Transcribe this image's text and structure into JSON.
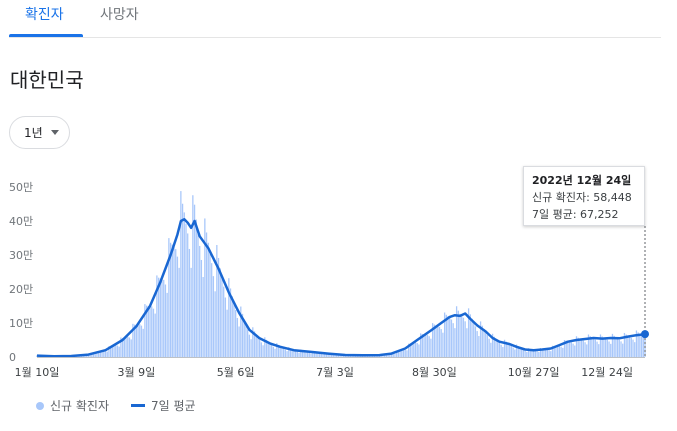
{
  "tabs": [
    {
      "label": "확진자",
      "active": true
    },
    {
      "label": "사망자",
      "active": false
    }
  ],
  "region_title": "대한민국",
  "period_selector": {
    "value": "1년"
  },
  "legend": {
    "new_cases": "신규 확진자",
    "avg": "7일 평균"
  },
  "tooltip": {
    "date": "2022년 12월 24일",
    "new_cases_line": "신규 확진자: 58,448",
    "avg_line": "7일 평균: 67,252"
  },
  "colors": {
    "bar": "#a8c7fa",
    "line": "#1967d2",
    "accent": "#1a73e8"
  },
  "chart_data": {
    "type": "bar",
    "series": [
      {
        "name": "신규 확진자",
        "kind": "bar"
      },
      {
        "name": "7일 평균",
        "kind": "line"
      }
    ],
    "x_ticks": [
      "1월 10일",
      "3월 9일",
      "5월 6일",
      "7월 3일",
      "8월 30일",
      "10월 27일",
      "12월 24일"
    ],
    "y_ticks": [
      "0",
      "10만",
      "20만",
      "30만",
      "40만",
      "50만"
    ],
    "ylim": [
      0,
      500000
    ],
    "x_range_days": [
      0,
      355
    ],
    "avg_points": [
      [
        0,
        4000
      ],
      [
        10,
        2000
      ],
      [
        20,
        3000
      ],
      [
        30,
        7000
      ],
      [
        40,
        20000
      ],
      [
        50,
        50000
      ],
      [
        58,
        90000
      ],
      [
        66,
        150000
      ],
      [
        72,
        220000
      ],
      [
        78,
        300000
      ],
      [
        82,
        360000
      ],
      [
        84,
        400000
      ],
      [
        86,
        405000
      ],
      [
        88,
        395000
      ],
      [
        90,
        380000
      ],
      [
        92,
        400000
      ],
      [
        95,
        355000
      ],
      [
        100,
        320000
      ],
      [
        106,
        260000
      ],
      [
        112,
        190000
      ],
      [
        118,
        130000
      ],
      [
        124,
        80000
      ],
      [
        130,
        55000
      ],
      [
        136,
        40000
      ],
      [
        142,
        30000
      ],
      [
        150,
        20000
      ],
      [
        160,
        15000
      ],
      [
        170,
        10000
      ],
      [
        180,
        6000
      ],
      [
        190,
        5000
      ],
      [
        200,
        5500
      ],
      [
        207,
        10000
      ],
      [
        215,
        25000
      ],
      [
        222,
        50000
      ],
      [
        230,
        78000
      ],
      [
        236,
        100000
      ],
      [
        241,
        118000
      ],
      [
        244,
        123000
      ],
      [
        247,
        121000
      ],
      [
        250,
        128000
      ],
      [
        253,
        112000
      ],
      [
        257,
        93000
      ],
      [
        262,
        75000
      ],
      [
        266,
        56000
      ],
      [
        270,
        45000
      ],
      [
        276,
        38000
      ],
      [
        280,
        30000
      ],
      [
        285,
        22000
      ],
      [
        290,
        20000
      ],
      [
        295,
        22000
      ],
      [
        300,
        25000
      ],
      [
        305,
        35000
      ],
      [
        310,
        45000
      ],
      [
        315,
        50000
      ],
      [
        320,
        53000
      ],
      [
        325,
        56000
      ],
      [
        330,
        54000
      ],
      [
        335,
        56000
      ],
      [
        340,
        55000
      ],
      [
        345,
        60000
      ],
      [
        350,
        64000
      ],
      [
        355,
        67252
      ]
    ],
    "tooltip_point": {
      "x_label": "12월 24일",
      "new_cases": 58448,
      "avg": 67252
    },
    "grid": false,
    "legend_position": "bottom-left"
  }
}
